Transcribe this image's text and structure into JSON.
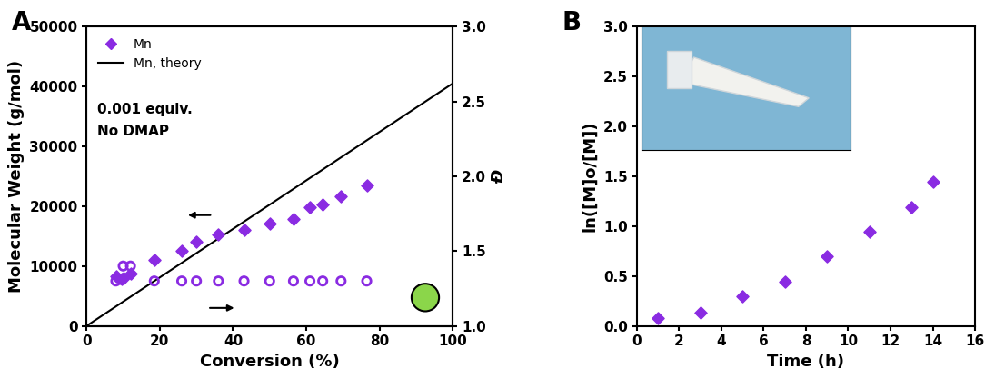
{
  "chart_data": [
    {
      "type": "scatter",
      "title": "A",
      "x_label": "Conversion (%)",
      "y_label": "Molecular Weight (g/mol)",
      "y2_label": "Đ",
      "annotations": [
        "0.001 equiv.",
        "No DMAP"
      ],
      "xlim": [
        0,
        100
      ],
      "xticks": [
        0,
        20,
        40,
        60,
        80,
        100
      ],
      "ylim": [
        0,
        50000
      ],
      "yticks": [
        0,
        10000,
        20000,
        30000,
        40000,
        50000
      ],
      "y2lim": [
        1.0,
        3.0
      ],
      "y2ticks": [
        {
          "value": 1.0,
          "label": "1.0"
        },
        1.5,
        {
          "value": 2.0,
          "label": "2.0"
        },
        2.5,
        {
          "value": 3.0,
          "label": "3.0"
        }
      ],
      "legend": "upper left",
      "series": [
        {
          "name": "Mn",
          "type": "scatter",
          "marker": "diamond",
          "color": "#8a2be2",
          "x": [
            8,
            9.5,
            10,
            12,
            18.5,
            26,
            30,
            36,
            43,
            50,
            56.5,
            61,
            64.5,
            69.5,
            76.5
          ],
          "values": [
            8300,
            7800,
            8000,
            8700,
            11000,
            12600,
            14000,
            15200,
            16100,
            17100,
            17900,
            19800,
            20300,
            21700,
            23500
          ]
        },
        {
          "name": "Mn, theory",
          "type": "line",
          "line_style": "solid",
          "color": "#000000",
          "x": [
            0,
            100
          ],
          "values": [
            0,
            40500
          ]
        },
        {
          "type": "scatter",
          "marker": "circle",
          "color": "#8a2be2",
          "axis": "y2",
          "x": [
            8,
            9.5,
            10,
            12,
            18.5,
            26,
            30,
            36,
            43,
            50,
            56.5,
            61,
            64.5,
            69.5,
            76.5
          ],
          "values": [
            1.3,
            1.31,
            1.4,
            1.4,
            1.3,
            1.3,
            1.3,
            1.3,
            1.3,
            1.3,
            1.3,
            1.3,
            1.3,
            1.3,
            1.3
          ]
        }
      ]
    },
    {
      "type": "scatter",
      "title": "B",
      "x_label": "Time (h)",
      "y_label": "ln([M]o/[M])",
      "xlim": [
        0,
        16
      ],
      "xticks": [
        0,
        2,
        4,
        6,
        8,
        10,
        12,
        14,
        16
      ],
      "ylim": [
        0.0,
        3.0
      ],
      "yticks": [
        {
          "value": 0.0,
          "label": "0.0"
        },
        0.5,
        {
          "value": 1.0,
          "label": "1.0"
        },
        1.5,
        {
          "value": 2.0,
          "label": "2.0"
        },
        2.5,
        {
          "value": 3.0,
          "label": "3.0"
        }
      ],
      "series": [
        {
          "type": "scatter",
          "marker": "diamond",
          "color": "#8a2be2",
          "x": [
            1,
            3,
            5,
            7,
            9,
            11,
            13,
            14
          ],
          "values": [
            0.08,
            0.13,
            0.3,
            0.44,
            0.7,
            0.94,
            1.19,
            1.44
          ]
        }
      ]
    }
  ]
}
